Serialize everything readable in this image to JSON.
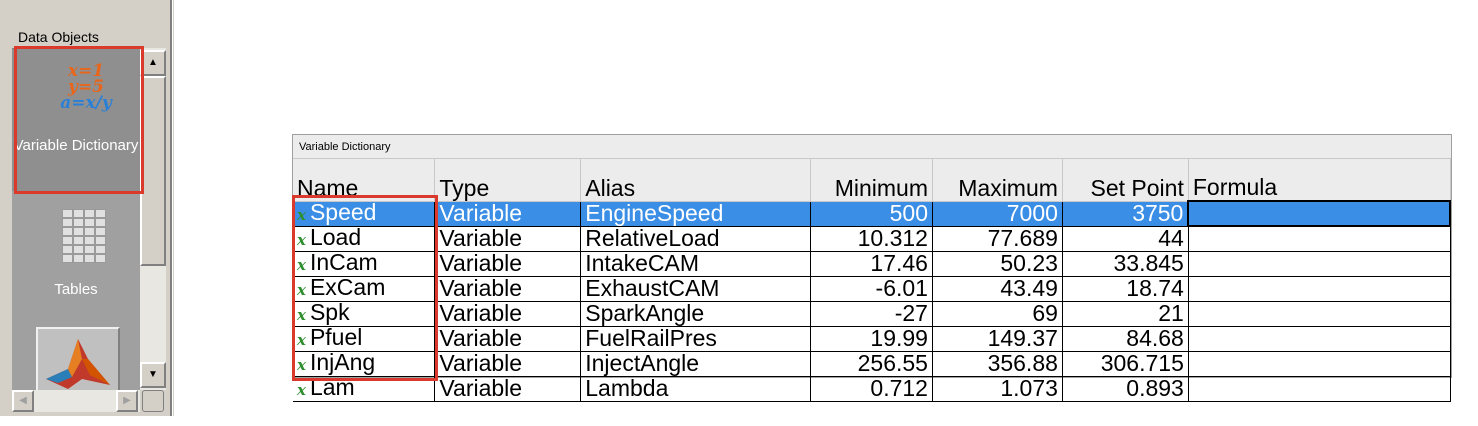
{
  "left_panel": {
    "title": "Data Objects",
    "items": [
      {
        "label": "Variable Dictionary",
        "icon": "variable-dictionary-icon",
        "icon_lines": [
          "x=1",
          "y=5",
          "a=x/y"
        ]
      },
      {
        "label": "Tables",
        "icon": "tables-icon"
      },
      {
        "label": "",
        "icon": "matlab-icon"
      }
    ]
  },
  "dictionary": {
    "window_title": "Variable Dictionary",
    "columns": [
      "Name",
      "Type",
      "Alias",
      "Minimum",
      "Maximum",
      "Set Point",
      "Formula"
    ],
    "rows": [
      {
        "name": "Speed",
        "type": "Variable",
        "alias": "EngineSpeed",
        "min": "500",
        "max": "7000",
        "set": "3750",
        "formula": "",
        "selected": true
      },
      {
        "name": "Load",
        "type": "Variable",
        "alias": "RelativeLoad",
        "min": "10.312",
        "max": "77.689",
        "set": "44",
        "formula": ""
      },
      {
        "name": "InCam",
        "type": "Variable",
        "alias": "IntakeCAM",
        "min": "17.46",
        "max": "50.23",
        "set": "33.845",
        "formula": ""
      },
      {
        "name": "ExCam",
        "type": "Variable",
        "alias": "ExhaustCAM",
        "min": "-6.01",
        "max": "43.49",
        "set": "18.74",
        "formula": ""
      },
      {
        "name": "Spk",
        "type": "Variable",
        "alias": "SparkAngle",
        "min": "-27",
        "max": "69",
        "set": "21",
        "formula": ""
      },
      {
        "name": "Pfuel",
        "type": "Variable",
        "alias": "FuelRailPres",
        "min": "19.99",
        "max": "149.37",
        "set": "84.68",
        "formula": ""
      },
      {
        "name": "InjAng",
        "type": "Variable",
        "alias": "InjectAngle",
        "min": "256.55",
        "max": "356.88",
        "set": "306.715",
        "formula": ""
      },
      {
        "name": "Lam",
        "type": "Variable",
        "alias": "Lambda",
        "min": "0.712",
        "max": "1.073",
        "set": "0.893",
        "formula": ""
      }
    ]
  },
  "colors": {
    "selection": "#3a8ee6",
    "highlight_box": "#d93a2b",
    "var_icon": "#2f8f2f"
  }
}
